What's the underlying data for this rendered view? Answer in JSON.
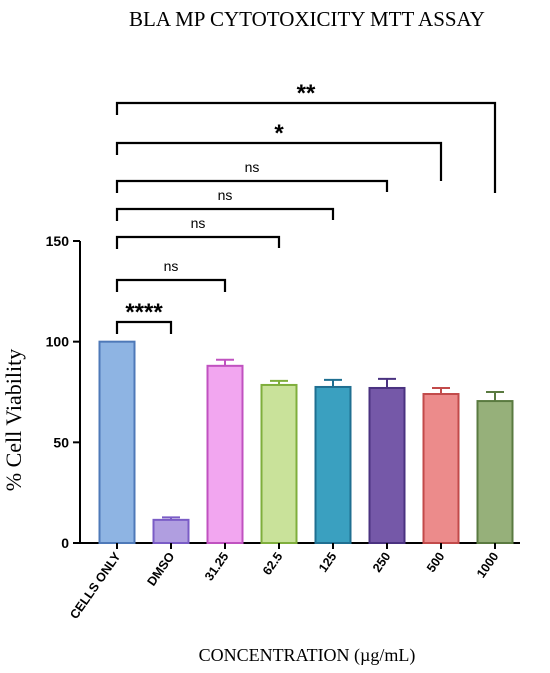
{
  "chart_data": {
    "type": "bar",
    "title": "BLA MP CYTOTOXICITY MTT ASSAY",
    "xlabel": "CONCENTRATION  (µg/mL)",
    "ylabel": "% Cell Viability",
    "ylim": [
      0,
      150
    ],
    "yticks": [
      0,
      50,
      100,
      150
    ],
    "grid": false,
    "categories": [
      "CELLS ONLY",
      "DMSO",
      "31.25",
      "62.5",
      "125",
      "250",
      "500",
      "1000"
    ],
    "values": [
      100,
      11.5,
      88,
      78.5,
      77.5,
      77,
      74,
      70.5
    ],
    "errors": [
      0,
      1.2,
      3,
      2,
      3.5,
      4.5,
      3,
      4.5
    ],
    "colors": [
      "#8eb4e3",
      "#b09ee0",
      "#f2a6f0",
      "#c9e29a",
      "#3aa0c0",
      "#7558a8",
      "#ec8b8b",
      "#96b07a"
    ],
    "edge_colors": [
      "#4e79b8",
      "#7a5cc6",
      "#c052c0",
      "#7fae3c",
      "#1f6f91",
      "#4a3280",
      "#c24a4a",
      "#5a7a40"
    ],
    "comparisons": [
      {
        "from": "CELLS ONLY",
        "to": "DMSO",
        "label": "****"
      },
      {
        "from": "CELLS ONLY",
        "to": "31.25",
        "label": "ns"
      },
      {
        "from": "CELLS ONLY",
        "to": "62.5",
        "label": "ns"
      },
      {
        "from": "CELLS ONLY",
        "to": "125",
        "label": "ns"
      },
      {
        "from": "CELLS ONLY",
        "to": "250",
        "label": "ns"
      },
      {
        "from": "CELLS ONLY",
        "to": "500",
        "label": "*"
      },
      {
        "from": "CELLS ONLY",
        "to": "1000",
        "label": "**"
      }
    ]
  }
}
